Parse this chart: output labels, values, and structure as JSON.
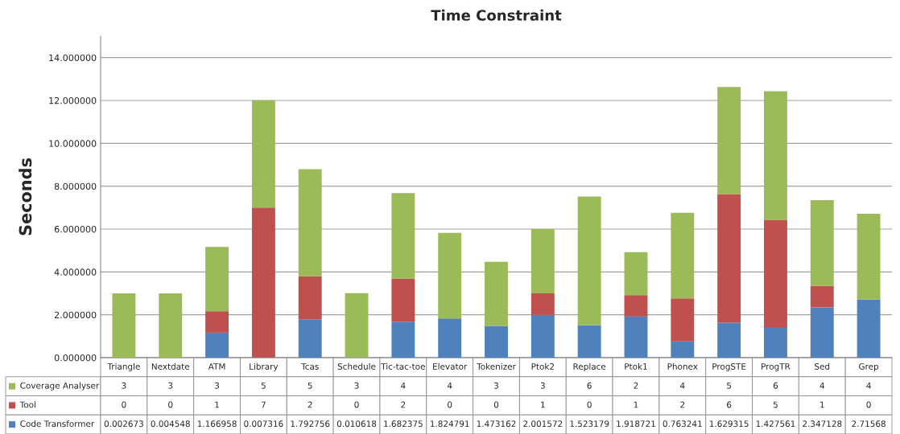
{
  "chart_data": {
    "type": "bar",
    "title": "Time Constraint",
    "ylabel": "Seconds",
    "stacked": true,
    "data_labels": true,
    "grid": "y",
    "legend": "bottom left",
    "categories": [
      "Triangle",
      "Nextdate",
      "ATM",
      "Library",
      "Tcas",
      "Schedule",
      "Tic-tac-toe",
      "Elevator",
      "Tokenizer",
      "Ptok2",
      "Replace",
      "Ptok1",
      "Phonex",
      "ProgSTE",
      "ProgTR",
      "Sed",
      "Grep"
    ],
    "series": [
      {
        "name": "Code Transformer",
        "color": "#4f81bd",
        "values": [
          0.002673,
          0.004548,
          1.166958,
          0.007316,
          1.792756,
          0.010618,
          1.682375,
          1.824791,
          1.473162,
          2.001572,
          1.523179,
          1.918721,
          0.763241,
          1.629315,
          1.427561,
          2.347128,
          2.71568
        ]
      },
      {
        "name": "Tool",
        "color": "#c0504d",
        "values": [
          0,
          0,
          1,
          7,
          2,
          0,
          2,
          0,
          0,
          1,
          0,
          1,
          2,
          6,
          5,
          1,
          0
        ]
      },
      {
        "name": "Coverage Analyser",
        "color": "#9bbb59",
        "values": [
          3,
          3,
          3,
          5,
          5,
          3,
          4,
          4,
          3,
          3,
          6,
          2,
          4,
          5,
          6,
          4,
          4
        ]
      }
    ],
    "ylim": [
      0,
      15
    ],
    "yticks": [
      {
        "value": 0,
        "label": "0.000000"
      },
      {
        "value": 2,
        "label": "2.000000"
      },
      {
        "value": 4,
        "label": "4.000000"
      },
      {
        "value": 6,
        "label": "6.000000"
      },
      {
        "value": 8,
        "label": "8.000000"
      },
      {
        "value": 10,
        "label": "10.000000"
      },
      {
        "value": 12,
        "label": "12.000000"
      },
      {
        "value": 14,
        "label": "14.000000"
      }
    ]
  }
}
